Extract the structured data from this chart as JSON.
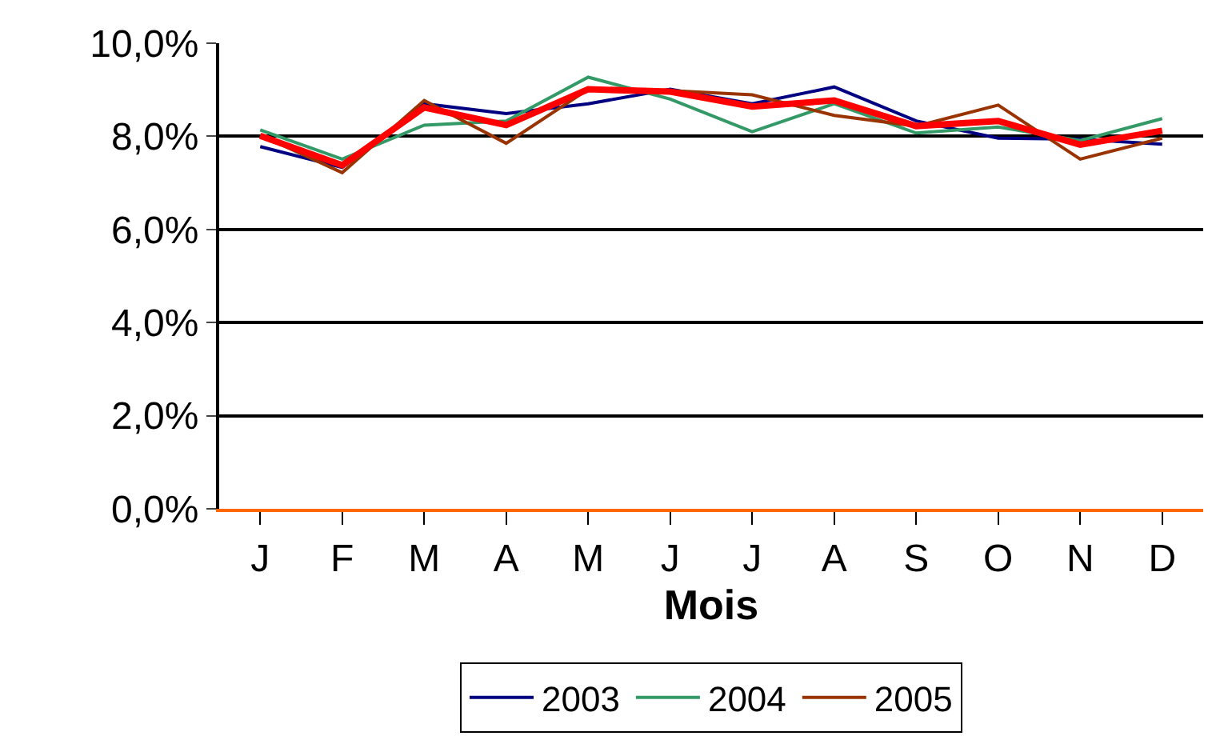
{
  "chart_data": {
    "type": "line",
    "xlabel": "Mois",
    "categories": [
      "J",
      "F",
      "M",
      "A",
      "M",
      "J",
      "J",
      "A",
      "S",
      "O",
      "N",
      "D"
    ],
    "series": [
      {
        "name": "2003",
        "color": "#000080",
        "values": [
          7.78,
          7.33,
          8.7,
          8.49,
          8.7,
          9.01,
          8.7,
          9.06,
          8.33,
          7.96,
          7.94,
          7.83
        ]
      },
      {
        "name": "2004",
        "color": "#339966",
        "values": [
          8.14,
          7.51,
          8.24,
          8.33,
          9.27,
          8.8,
          8.1,
          8.7,
          8.07,
          8.2,
          7.91,
          8.38
        ]
      },
      {
        "name": "2005",
        "color": "#993300",
        "values": [
          8.03,
          7.22,
          8.77,
          7.85,
          9.01,
          8.98,
          8.89,
          8.45,
          8.22,
          8.67,
          7.51,
          7.96
        ]
      },
      {
        "color": "#ff0000",
        "values": [
          8.01,
          7.38,
          8.62,
          8.24,
          9.01,
          8.96,
          8.64,
          8.77,
          8.22,
          8.33,
          7.82,
          8.12
        ]
      }
    ],
    "ylim": [
      0,
      10
    ],
    "yticks": [
      {
        "value": 0,
        "label": "0,0%"
      },
      {
        "value": 2,
        "label": "2,0%"
      },
      {
        "value": 4,
        "label": "4,0%"
      },
      {
        "value": 6,
        "label": "6,0%"
      },
      {
        "value": 8,
        "label": "8,0%"
      },
      {
        "value": 10,
        "label": "10,0%"
      }
    ],
    "grid": "y",
    "legend": "bottom",
    "marker": "none",
    "line_style": "solid"
  }
}
